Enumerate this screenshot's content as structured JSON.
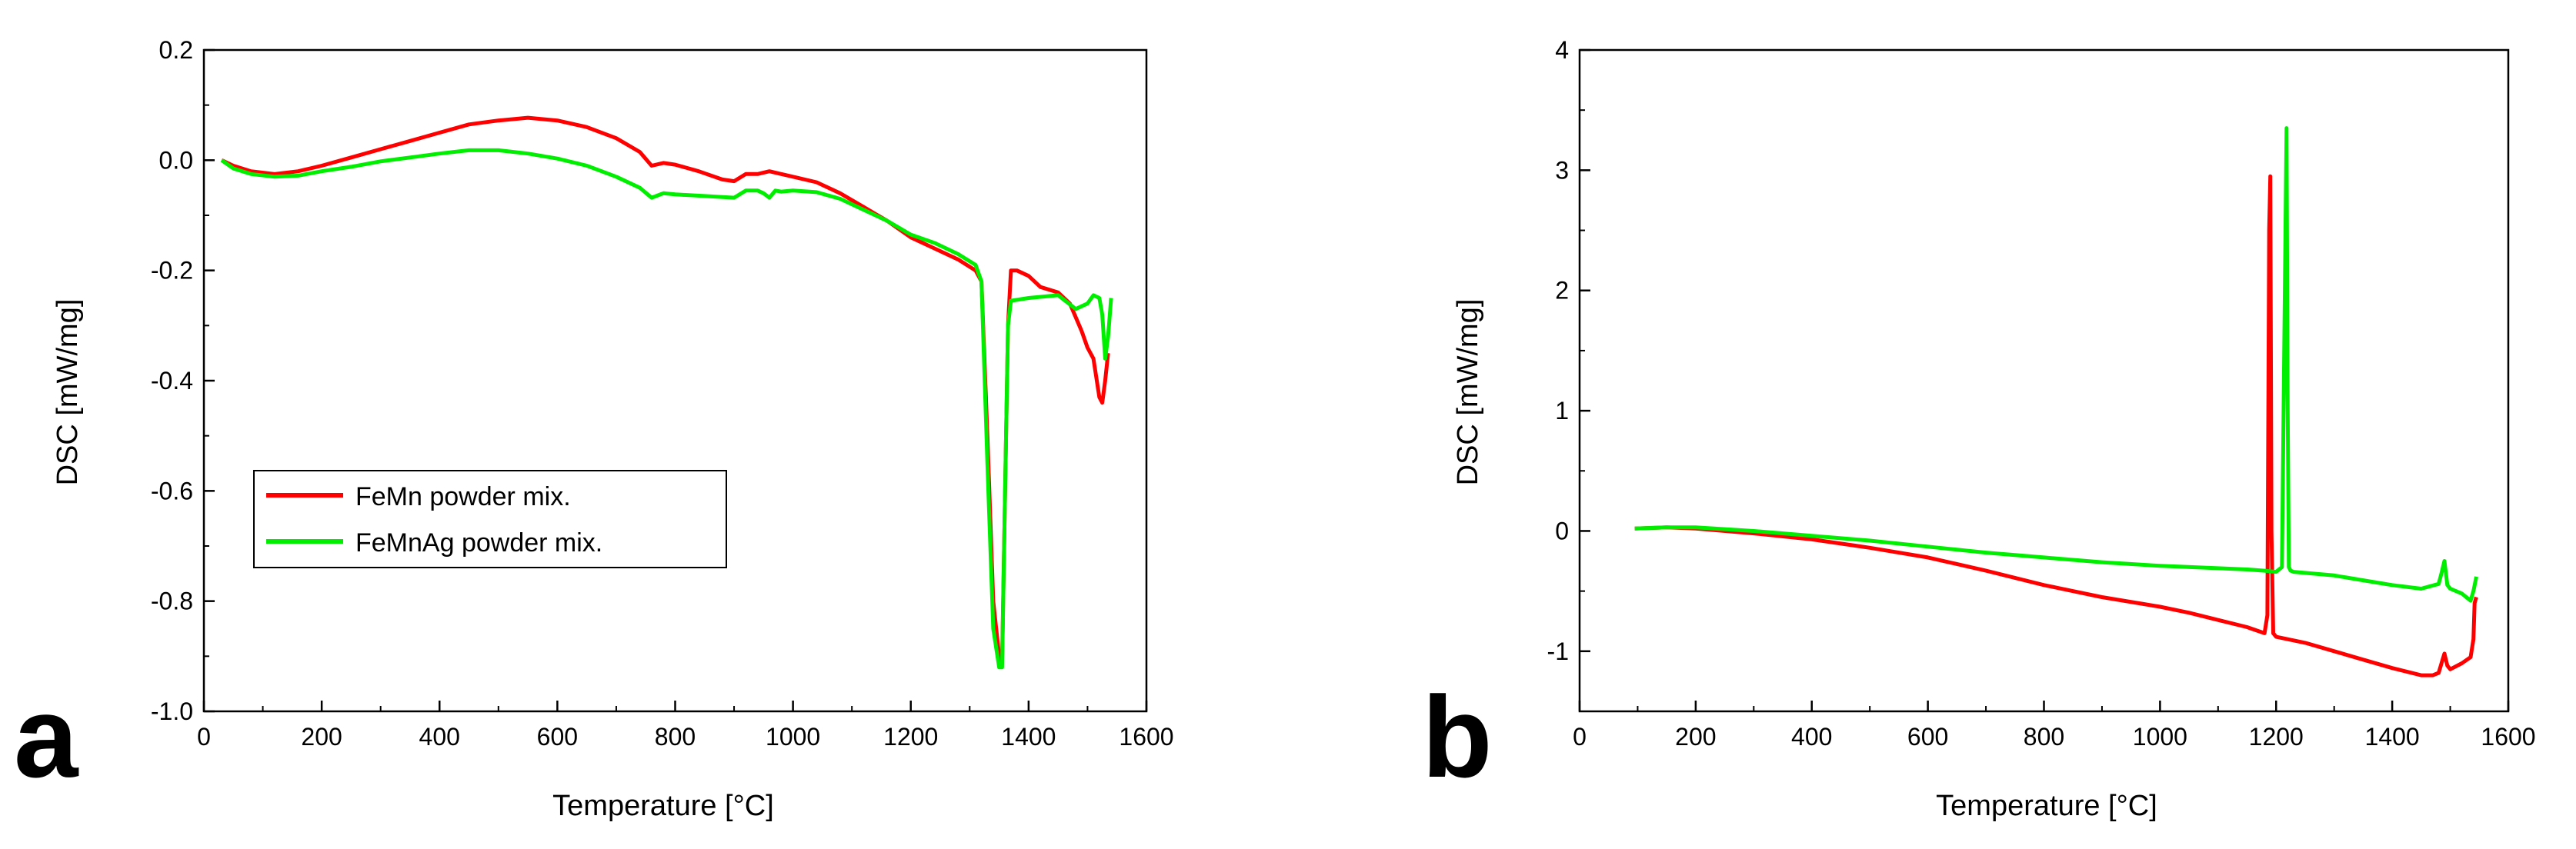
{
  "chart_data": [
    {
      "panel": "a",
      "type": "line",
      "title": "",
      "xlabel": "Temperature [°C]",
      "ylabel": "DSC [mW/mg]",
      "xlim": [
        0,
        1600
      ],
      "ylim": [
        -1.0,
        0.2
      ],
      "xticks": [
        0,
        200,
        400,
        600,
        800,
        1000,
        1200,
        1400,
        1600
      ],
      "yticks": [
        0.2,
        0.0,
        -0.2,
        -0.4,
        -0.6,
        -0.8,
        -1.0
      ],
      "ytick_labels": [
        "0.2",
        "0.0",
        "-0.2",
        "-0.4",
        "-0.6",
        "-0.8",
        "-1.0"
      ],
      "grid": false,
      "legend": "lower-left",
      "series": [
        {
          "name": "FeMn powder mix.",
          "color": "#ff0000",
          "x": [
            30,
            50,
            80,
            120,
            160,
            200,
            250,
            300,
            350,
            400,
            450,
            500,
            550,
            600,
            650,
            700,
            740,
            760,
            780,
            800,
            840,
            880,
            900,
            920,
            940,
            960,
            980,
            1000,
            1040,
            1080,
            1120,
            1160,
            1200,
            1240,
            1280,
            1310,
            1320,
            1330,
            1340,
            1350,
            1355,
            1360,
            1365,
            1370,
            1380,
            1400,
            1420,
            1450,
            1470,
            1490,
            1500,
            1510,
            1520,
            1525,
            1530,
            1535
          ],
          "y": [
            0.0,
            -0.01,
            -0.02,
            -0.025,
            -0.02,
            -0.01,
            0.005,
            0.02,
            0.035,
            0.05,
            0.065,
            0.072,
            0.077,
            0.072,
            0.06,
            0.04,
            0.015,
            -0.01,
            -0.005,
            -0.008,
            -0.02,
            -0.035,
            -0.038,
            -0.025,
            -0.025,
            -0.02,
            -0.025,
            -0.03,
            -0.04,
            -0.06,
            -0.085,
            -0.11,
            -0.14,
            -0.16,
            -0.18,
            -0.2,
            -0.22,
            -0.5,
            -0.8,
            -0.9,
            -0.91,
            -0.6,
            -0.3,
            -0.2,
            -0.2,
            -0.21,
            -0.23,
            -0.24,
            -0.26,
            -0.31,
            -0.34,
            -0.36,
            -0.43,
            -0.44,
            -0.4,
            -0.35
          ]
        },
        {
          "name": "FeMnAg powder mix.",
          "color": "#00ee00",
          "x": [
            30,
            50,
            80,
            120,
            160,
            200,
            250,
            300,
            350,
            400,
            450,
            500,
            550,
            600,
            650,
            700,
            740,
            760,
            780,
            800,
            850,
            900,
            920,
            940,
            950,
            960,
            970,
            980,
            1000,
            1040,
            1080,
            1120,
            1160,
            1200,
            1240,
            1280,
            1310,
            1320,
            1330,
            1340,
            1350,
            1355,
            1360,
            1365,
            1370,
            1400,
            1450,
            1480,
            1500,
            1510,
            1520,
            1525,
            1530,
            1535,
            1540
          ],
          "y": [
            0.0,
            -0.015,
            -0.025,
            -0.03,
            -0.028,
            -0.02,
            -0.012,
            -0.002,
            0.005,
            0.012,
            0.018,
            0.018,
            0.012,
            0.003,
            -0.01,
            -0.03,
            -0.05,
            -0.068,
            -0.06,
            -0.062,
            -0.065,
            -0.068,
            -0.055,
            -0.055,
            -0.06,
            -0.068,
            -0.055,
            -0.057,
            -0.055,
            -0.058,
            -0.07,
            -0.09,
            -0.11,
            -0.135,
            -0.15,
            -0.17,
            -0.19,
            -0.22,
            -0.55,
            -0.85,
            -0.92,
            -0.92,
            -0.6,
            -0.3,
            -0.255,
            -0.25,
            -0.245,
            -0.27,
            -0.26,
            -0.245,
            -0.25,
            -0.28,
            -0.36,
            -0.32,
            -0.25
          ]
        }
      ],
      "legend_entries": [
        "FeMn powder mix.",
        "FeMnAg powder mix."
      ]
    },
    {
      "panel": "b",
      "type": "line",
      "title": "",
      "xlabel": "Temperature [°C]",
      "ylabel": "DSC [mW/mg]",
      "xlim": [
        0,
        1600
      ],
      "ylim": [
        -1.5,
        4
      ],
      "xticks": [
        0,
        200,
        400,
        600,
        800,
        1000,
        1200,
        1400,
        1600
      ],
      "yticks": [
        4,
        3,
        2,
        1,
        0,
        -1
      ],
      "ytick_labels": [
        "4",
        "3",
        "2",
        "1",
        "0",
        "-1"
      ],
      "grid": false,
      "legend": "none",
      "series": [
        {
          "color": "#ff0000",
          "x": [
            95,
            150,
            200,
            300,
            400,
            500,
            600,
            700,
            800,
            900,
            1000,
            1050,
            1100,
            1150,
            1180,
            1185,
            1188,
            1190,
            1192,
            1195,
            1200,
            1250,
            1300,
            1350,
            1400,
            1450,
            1470,
            1480,
            1485,
            1490,
            1495,
            1500,
            1520,
            1535,
            1540,
            1542,
            1545
          ],
          "y": [
            0.02,
            0.03,
            0.02,
            -0.02,
            -0.07,
            -0.14,
            -0.22,
            -0.33,
            -0.45,
            -0.55,
            -0.63,
            -0.68,
            -0.74,
            -0.8,
            -0.85,
            -0.7,
            2.5,
            2.95,
            0.0,
            -0.85,
            -0.88,
            -0.93,
            -1.0,
            -1.07,
            -1.14,
            -1.2,
            -1.2,
            -1.18,
            -1.1,
            -1.02,
            -1.12,
            -1.15,
            -1.1,
            -1.05,
            -0.9,
            -0.6,
            -0.55
          ]
        },
        {
          "color": "#00ee00",
          "x": [
            95,
            150,
            200,
            300,
            400,
            500,
            600,
            700,
            800,
            900,
            1000,
            1100,
            1150,
            1180,
            1200,
            1210,
            1215,
            1218,
            1220,
            1222,
            1225,
            1230,
            1300,
            1350,
            1400,
            1450,
            1480,
            1485,
            1490,
            1495,
            1500,
            1520,
            1535,
            1540,
            1545
          ],
          "y": [
            0.02,
            0.03,
            0.03,
            0.0,
            -0.04,
            -0.08,
            -0.13,
            -0.18,
            -0.22,
            -0.26,
            -0.29,
            -0.31,
            -0.32,
            -0.33,
            -0.34,
            -0.3,
            2.0,
            3.35,
            1.0,
            -0.3,
            -0.33,
            -0.34,
            -0.37,
            -0.41,
            -0.45,
            -0.48,
            -0.44,
            -0.35,
            -0.25,
            -0.45,
            -0.48,
            -0.52,
            -0.58,
            -0.5,
            -0.38
          ]
        }
      ]
    }
  ]
}
